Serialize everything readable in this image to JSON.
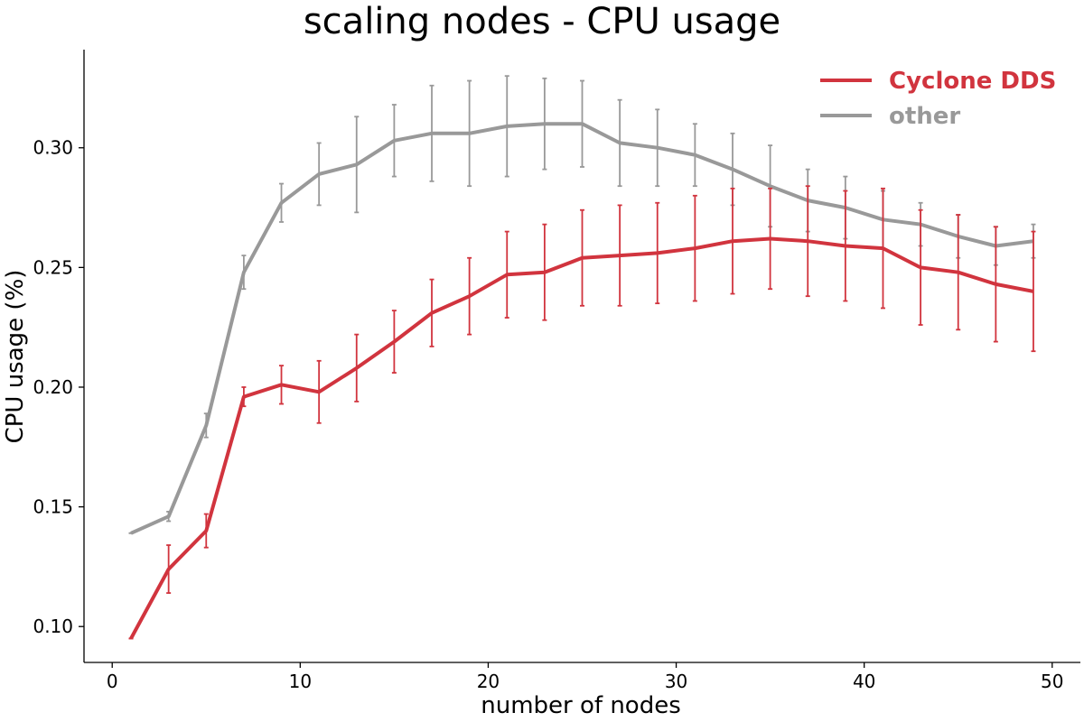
{
  "chart_data": {
    "type": "line",
    "title": "scaling nodes - CPU usage",
    "xlabel": "number of nodes",
    "ylabel": "CPU usage (%)",
    "xlim": [
      -1.5,
      51.5
    ],
    "ylim": [
      0.085,
      0.341
    ],
    "xticks": [
      0,
      10,
      20,
      30,
      40,
      50
    ],
    "yticks": [
      0.1,
      0.15,
      0.2,
      0.25,
      0.3
    ],
    "ytick_labels": [
      "0.10",
      "0.15",
      "0.20",
      "0.25",
      "0.30"
    ],
    "grid": false,
    "legend_position": "top-right",
    "x": [
      1,
      3,
      5,
      7,
      9,
      11,
      13,
      15,
      17,
      19,
      21,
      23,
      25,
      27,
      29,
      31,
      33,
      35,
      37,
      39,
      41,
      43,
      45,
      47,
      49
    ],
    "series": [
      {
        "name": "Cyclone DDS",
        "color": "#d1343e",
        "values": [
          0.095,
          0.124,
          0.14,
          0.196,
          0.201,
          0.198,
          0.208,
          0.219,
          0.231,
          0.238,
          0.247,
          0.248,
          0.254,
          0.255,
          0.256,
          0.258,
          0.261,
          0.262,
          0.261,
          0.259,
          0.258,
          0.25,
          0.248,
          0.243,
          0.24
        ],
        "errors": [
          0.0,
          0.01,
          0.007,
          0.004,
          0.008,
          0.013,
          0.014,
          0.013,
          0.014,
          0.016,
          0.018,
          0.02,
          0.02,
          0.021,
          0.021,
          0.022,
          0.022,
          0.021,
          0.023,
          0.023,
          0.025,
          0.024,
          0.024,
          0.024,
          0.025
        ]
      },
      {
        "name": "other",
        "color": "#999999",
        "values": [
          0.139,
          0.146,
          0.184,
          0.248,
          0.277,
          0.289,
          0.293,
          0.303,
          0.306,
          0.306,
          0.309,
          0.31,
          0.31,
          0.302,
          0.3,
          0.297,
          0.291,
          0.284,
          0.278,
          0.275,
          0.27,
          0.268,
          0.263,
          0.259,
          0.261
        ],
        "errors": [
          0.0,
          0.002,
          0.005,
          0.007,
          0.008,
          0.013,
          0.02,
          0.015,
          0.02,
          0.022,
          0.021,
          0.019,
          0.018,
          0.018,
          0.016,
          0.013,
          0.015,
          0.017,
          0.013,
          0.013,
          0.012,
          0.009,
          0.009,
          0.008,
          0.007
        ]
      }
    ]
  }
}
